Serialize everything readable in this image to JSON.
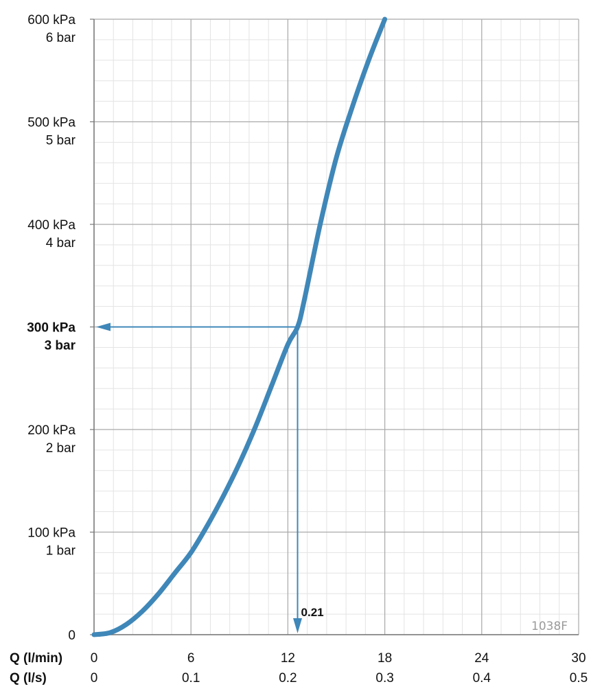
{
  "chart_data": {
    "type": "line",
    "title": "",
    "x_axis_labels": [
      "Q (l/min)",
      "Q (l/s)"
    ],
    "x_ticks_lmin": [
      "0",
      "6",
      "12",
      "18",
      "24",
      "30"
    ],
    "x_ticks_ls": [
      "0",
      "0.1",
      "0.2",
      "0.3",
      "0.4",
      "0.5"
    ],
    "xlim": [
      0,
      30
    ],
    "y_ticks": [
      {
        "value": 0,
        "kpa": "0",
        "bar": ""
      },
      {
        "value": 100,
        "kpa": "100 kPa",
        "bar": "1 bar"
      },
      {
        "value": 200,
        "kpa": "200 kPa",
        "bar": "2 bar"
      },
      {
        "value": 300,
        "kpa": "300 kPa",
        "bar": "3 bar",
        "bold": true
      },
      {
        "value": 400,
        "kpa": "400 kPa",
        "bar": "4 bar"
      },
      {
        "value": 500,
        "kpa": "500 kPa",
        "bar": "5 bar"
      },
      {
        "value": 600,
        "kpa": "600 kPa",
        "bar": "6 bar"
      }
    ],
    "ylim": [
      0,
      600
    ],
    "grid": true,
    "series": [
      {
        "color": "#3f87b8",
        "x": [
          0,
          1,
          2,
          3,
          4,
          5,
          6,
          7,
          8,
          9,
          10,
          11,
          12,
          12.6,
          13,
          14,
          15,
          16,
          17,
          18
        ],
        "y": [
          0,
          2,
          10,
          23,
          40,
          60,
          80,
          106,
          135,
          167,
          203,
          243,
          283,
          300,
          325,
          400,
          465,
          515,
          560,
          600
        ]
      }
    ],
    "annotation": {
      "label": "0.21",
      "x": 12.6,
      "y": 300,
      "color": "#3f87b8"
    },
    "watermark": "1038F"
  }
}
